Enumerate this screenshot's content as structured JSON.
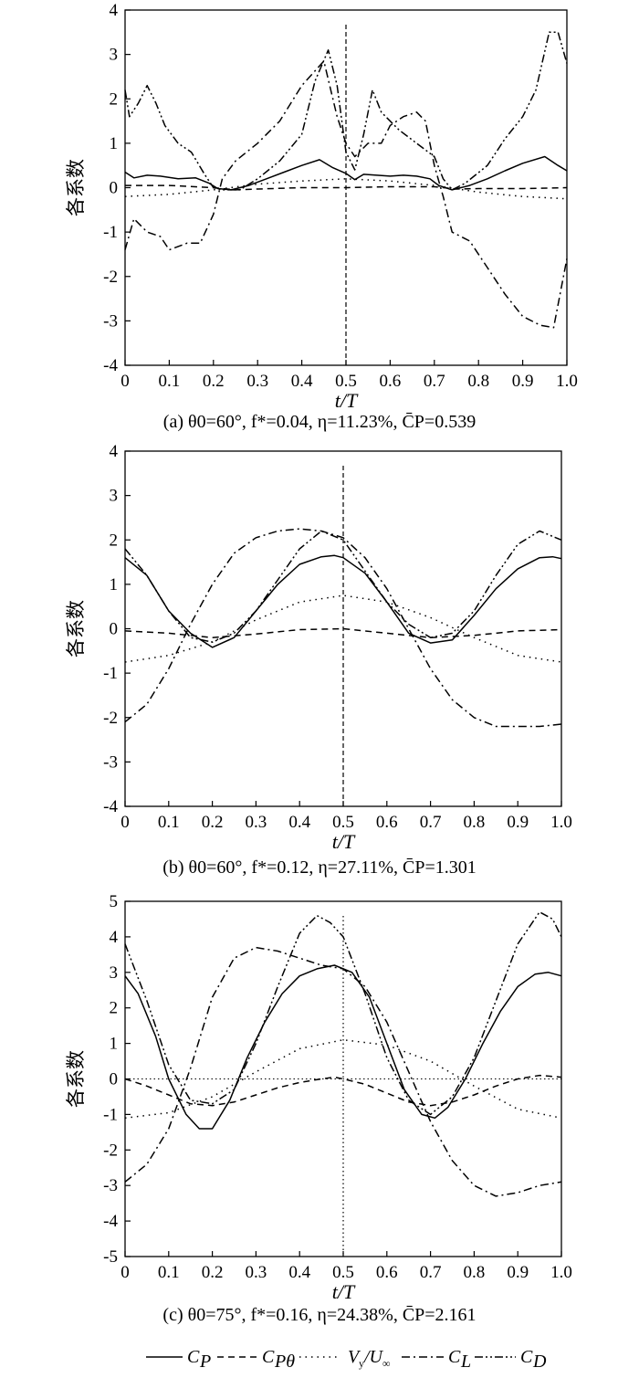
{
  "legend": [
    "C_P",
    "C_Pθ",
    "V_y/U_∞",
    "C_L",
    "C_D"
  ],
  "legend_display": [
    "C",
    "C",
    "V",
    "C",
    "C"
  ],
  "chart_data": [
    {
      "type": "line",
      "xlabel": "t/T",
      "ylabel": "各系数",
      "xlim": [
        0,
        1.0
      ],
      "ylim": [
        -4,
        4
      ],
      "xticks": [
        "0",
        "0.1",
        "0.2",
        "0.3",
        "0.4",
        "0.5",
        "0.6",
        "0.7",
        "0.8",
        "0.9",
        "1.0"
      ],
      "yticks": [
        "-4",
        "-3",
        "-2",
        "-1",
        "0",
        "1",
        "2",
        "3",
        "4"
      ],
      "vline_x": 0.5,
      "caption": "(a) θ0=60°, f*=0.04, η=11.23%, C̄P=0.539",
      "series": [
        {
          "name": "C_P",
          "x": [
            0,
            0.02,
            0.05,
            0.08,
            0.12,
            0.16,
            0.19,
            0.21,
            0.24,
            0.28,
            0.32,
            0.36,
            0.4,
            0.44,
            0.47,
            0.5,
            0.52,
            0.54,
            0.57,
            0.6,
            0.63,
            0.66,
            0.69,
            0.71,
            0.74,
            0.78,
            0.82,
            0.86,
            0.9,
            0.95,
            0.98,
            1.0
          ],
          "y": [
            0.35,
            0.22,
            0.28,
            0.26,
            0.2,
            0.22,
            0.1,
            -0.02,
            -0.05,
            0.05,
            0.2,
            0.35,
            0.5,
            0.63,
            0.45,
            0.32,
            0.18,
            0.3,
            0.28,
            0.26,
            0.28,
            0.26,
            0.2,
            0.05,
            -0.05,
            0.05,
            0.2,
            0.38,
            0.55,
            0.7,
            0.5,
            0.38
          ]
        },
        {
          "name": "C_Pθ",
          "x": [
            0,
            0.1,
            0.2,
            0.25,
            0.3,
            0.4,
            0.5,
            0.6,
            0.7,
            0.75,
            0.8,
            0.9,
            1.0
          ],
          "y": [
            0.05,
            0.05,
            0.0,
            -0.05,
            -0.03,
            0.0,
            0.0,
            0.02,
            0.02,
            -0.03,
            -0.02,
            -0.02,
            0.0
          ]
        },
        {
          "name": "V_y/U_∞",
          "x": [
            0,
            0.1,
            0.2,
            0.3,
            0.4,
            0.5,
            0.6,
            0.7,
            0.8,
            0.9,
            1.0
          ],
          "y": [
            -0.2,
            -0.15,
            -0.05,
            0.08,
            0.15,
            0.2,
            0.15,
            0.05,
            -0.1,
            -0.2,
            -0.25
          ]
        },
        {
          "name": "C_L",
          "x": [
            0,
            0.02,
            0.05,
            0.08,
            0.1,
            0.14,
            0.17,
            0.2,
            0.22,
            0.25,
            0.3,
            0.35,
            0.4,
            0.45,
            0.48,
            0.5,
            0.52,
            0.55,
            0.58,
            0.6,
            0.63,
            0.66,
            0.68,
            0.7,
            0.72,
            0.74,
            0.78,
            0.82,
            0.86,
            0.9,
            0.94,
            0.97,
            1.0
          ],
          "y": [
            -1.4,
            -0.7,
            -1.0,
            -1.1,
            -1.4,
            -1.25,
            -1.25,
            -0.6,
            0.2,
            0.6,
            1.0,
            1.5,
            2.3,
            2.85,
            1.6,
            1.0,
            0.7,
            1.0,
            1.0,
            1.4,
            1.6,
            1.7,
            1.5,
            0.5,
            -0.2,
            -1.0,
            -1.2,
            -1.8,
            -2.4,
            -2.9,
            -3.1,
            -3.15,
            -1.6
          ]
        },
        {
          "name": "C_D",
          "x": [
            0,
            0.01,
            0.03,
            0.05,
            0.07,
            0.09,
            0.12,
            0.15,
            0.18,
            0.2,
            0.22,
            0.26,
            0.3,
            0.35,
            0.4,
            0.43,
            0.46,
            0.48,
            0.5,
            0.52,
            0.54,
            0.56,
            0.58,
            0.62,
            0.66,
            0.7,
            0.72,
            0.74,
            0.77,
            0.82,
            0.86,
            0.9,
            0.93,
            0.96,
            0.98,
            1.0
          ],
          "y": [
            2.2,
            1.6,
            1.9,
            2.3,
            1.9,
            1.4,
            1.0,
            0.8,
            0.3,
            0.0,
            -0.05,
            -0.05,
            0.2,
            0.6,
            1.2,
            2.4,
            3.1,
            2.3,
            0.8,
            0.4,
            1.2,
            2.2,
            1.7,
            1.3,
            1.0,
            0.7,
            0.2,
            -0.05,
            0.1,
            0.5,
            1.1,
            1.6,
            2.2,
            3.5,
            3.5,
            2.8
          ]
        }
      ]
    },
    {
      "type": "line",
      "xlabel": "t/T",
      "ylabel": "各系数",
      "xlim": [
        0,
        1.0
      ],
      "ylim": [
        -4,
        4
      ],
      "xticks": [
        "0",
        "0.1",
        "0.2",
        "0.3",
        "0.4",
        "0.5",
        "0.6",
        "0.7",
        "0.8",
        "0.9",
        "1.0"
      ],
      "yticks": [
        "-4",
        "-3",
        "-2",
        "-1",
        "0",
        "1",
        "2",
        "3",
        "4"
      ],
      "vline_x": 0.5,
      "caption": "(b) θ0=60°, f*=0.12, η=27.11%, C̄P=1.301",
      "series": [
        {
          "name": "C_P",
          "x": [
            0,
            0.05,
            0.1,
            0.15,
            0.2,
            0.25,
            0.3,
            0.35,
            0.4,
            0.45,
            0.48,
            0.5,
            0.55,
            0.6,
            0.65,
            0.7,
            0.75,
            0.8,
            0.85,
            0.9,
            0.95,
            0.98,
            1.0
          ],
          "y": [
            1.6,
            1.2,
            0.4,
            -0.1,
            -0.42,
            -0.2,
            0.4,
            1.0,
            1.45,
            1.62,
            1.65,
            1.6,
            1.25,
            0.6,
            -0.1,
            -0.32,
            -0.25,
            0.3,
            0.9,
            1.35,
            1.6,
            1.62,
            1.58
          ]
        },
        {
          "name": "C_Pθ",
          "x": [
            0,
            0.1,
            0.2,
            0.3,
            0.4,
            0.5,
            0.6,
            0.7,
            0.8,
            0.9,
            1.0
          ],
          "y": [
            -0.05,
            -0.1,
            -0.2,
            -0.12,
            -0.02,
            0.0,
            -0.1,
            -0.2,
            -0.15,
            -0.05,
            -0.02
          ]
        },
        {
          "name": "V_y/U_∞",
          "x": [
            0,
            0.1,
            0.2,
            0.3,
            0.4,
            0.5,
            0.6,
            0.7,
            0.8,
            0.9,
            1.0
          ],
          "y": [
            -0.75,
            -0.6,
            -0.3,
            0.2,
            0.6,
            0.75,
            0.6,
            0.25,
            -0.2,
            -0.6,
            -0.75
          ]
        },
        {
          "name": "C_L",
          "x": [
            0,
            0.05,
            0.1,
            0.15,
            0.2,
            0.25,
            0.3,
            0.35,
            0.4,
            0.45,
            0.5,
            0.55,
            0.6,
            0.65,
            0.7,
            0.75,
            0.8,
            0.85,
            0.9,
            0.95,
            1.0
          ],
          "y": [
            -2.1,
            -1.7,
            -0.9,
            0.1,
            1.0,
            1.7,
            2.05,
            2.2,
            2.25,
            2.2,
            2.05,
            1.6,
            0.9,
            0.0,
            -0.9,
            -1.6,
            -2.0,
            -2.2,
            -2.2,
            -2.2,
            -2.15
          ]
        },
        {
          "name": "C_D",
          "x": [
            0,
            0.05,
            0.1,
            0.15,
            0.2,
            0.25,
            0.3,
            0.35,
            0.4,
            0.45,
            0.5,
            0.55,
            0.6,
            0.65,
            0.7,
            0.75,
            0.8,
            0.85,
            0.9,
            0.95,
            1.0
          ],
          "y": [
            1.8,
            1.2,
            0.4,
            -0.2,
            -0.3,
            -0.1,
            0.4,
            1.1,
            1.8,
            2.2,
            2.0,
            1.3,
            0.6,
            0.1,
            -0.2,
            -0.1,
            0.4,
            1.2,
            1.9,
            2.2,
            2.0
          ]
        }
      ]
    },
    {
      "type": "line",
      "xlabel": "t/T",
      "ylabel": "各系数",
      "xlim": [
        0,
        1.0
      ],
      "ylim": [
        -5,
        5
      ],
      "xticks": [
        "0",
        "0.1",
        "0.2",
        "0.3",
        "0.4",
        "0.5",
        "0.6",
        "0.7",
        "0.8",
        "0.9",
        "1.0"
      ],
      "yticks": [
        "-5",
        "-4",
        "-3",
        "-2",
        "-1",
        "0",
        "1",
        "2",
        "3",
        "4",
        "5"
      ],
      "vline_x": 0.5,
      "caption": "(c) θ0=75°, f*=0.16, η=24.38%, C̄P=2.161",
      "series": [
        {
          "name": "C_P",
          "x": [
            0,
            0.03,
            0.07,
            0.1,
            0.14,
            0.17,
            0.2,
            0.24,
            0.28,
            0.32,
            0.36,
            0.4,
            0.44,
            0.48,
            0.52,
            0.56,
            0.6,
            0.64,
            0.68,
            0.71,
            0.74,
            0.78,
            0.82,
            0.86,
            0.9,
            0.94,
            0.97,
            1.0
          ],
          "y": [
            2.9,
            2.4,
            1.2,
            0.0,
            -1.0,
            -1.4,
            -1.4,
            -0.6,
            0.6,
            1.6,
            2.4,
            2.9,
            3.1,
            3.2,
            3.0,
            2.3,
            1.0,
            -0.3,
            -1.0,
            -1.1,
            -0.8,
            0.0,
            1.0,
            1.9,
            2.6,
            2.95,
            3.0,
            2.9
          ]
        },
        {
          "name": "C_Pθ",
          "x": [
            0,
            0.05,
            0.1,
            0.15,
            0.2,
            0.25,
            0.3,
            0.35,
            0.4,
            0.45,
            0.48,
            0.5,
            0.55,
            0.6,
            0.65,
            0.7,
            0.75,
            0.8,
            0.85,
            0.9,
            0.95,
            1.0
          ],
          "y": [
            0.0,
            -0.2,
            -0.45,
            -0.7,
            -0.75,
            -0.65,
            -0.45,
            -0.25,
            -0.1,
            0.0,
            0.05,
            0.0,
            -0.15,
            -0.4,
            -0.65,
            -0.75,
            -0.65,
            -0.45,
            -0.2,
            0.0,
            0.1,
            0.05
          ]
        },
        {
          "name": "V_y/U_∞",
          "x": [
            0,
            0.1,
            0.2,
            0.3,
            0.4,
            0.5,
            0.6,
            0.7,
            0.8,
            0.9,
            1.0
          ],
          "y": [
            -1.1,
            -0.95,
            -0.5,
            0.2,
            0.85,
            1.1,
            0.95,
            0.5,
            -0.2,
            -0.85,
            -1.1
          ]
        },
        {
          "name": "C_L",
          "x": [
            0,
            0.05,
            0.1,
            0.15,
            0.2,
            0.25,
            0.3,
            0.35,
            0.4,
            0.45,
            0.5,
            0.55,
            0.6,
            0.65,
            0.7,
            0.75,
            0.8,
            0.85,
            0.9,
            0.95,
            1.0
          ],
          "y": [
            -2.9,
            -2.4,
            -1.4,
            0.3,
            2.3,
            3.4,
            3.7,
            3.6,
            3.4,
            3.2,
            3.1,
            2.6,
            1.6,
            0.2,
            -1.2,
            -2.3,
            -3.0,
            -3.3,
            -3.2,
            -3.0,
            -2.9
          ]
        },
        {
          "name": "C_D",
          "x": [
            0,
            0.05,
            0.1,
            0.15,
            0.2,
            0.25,
            0.3,
            0.35,
            0.4,
            0.44,
            0.47,
            0.5,
            0.55,
            0.6,
            0.65,
            0.7,
            0.75,
            0.8,
            0.85,
            0.9,
            0.95,
            0.98,
            1.0
          ],
          "y": [
            3.8,
            2.2,
            0.4,
            -0.6,
            -0.7,
            -0.3,
            1.0,
            2.6,
            4.1,
            4.6,
            4.4,
            4.0,
            2.4,
            0.6,
            -0.6,
            -1.0,
            -0.5,
            0.6,
            2.2,
            3.8,
            4.7,
            4.5,
            4.0
          ]
        }
      ]
    }
  ]
}
